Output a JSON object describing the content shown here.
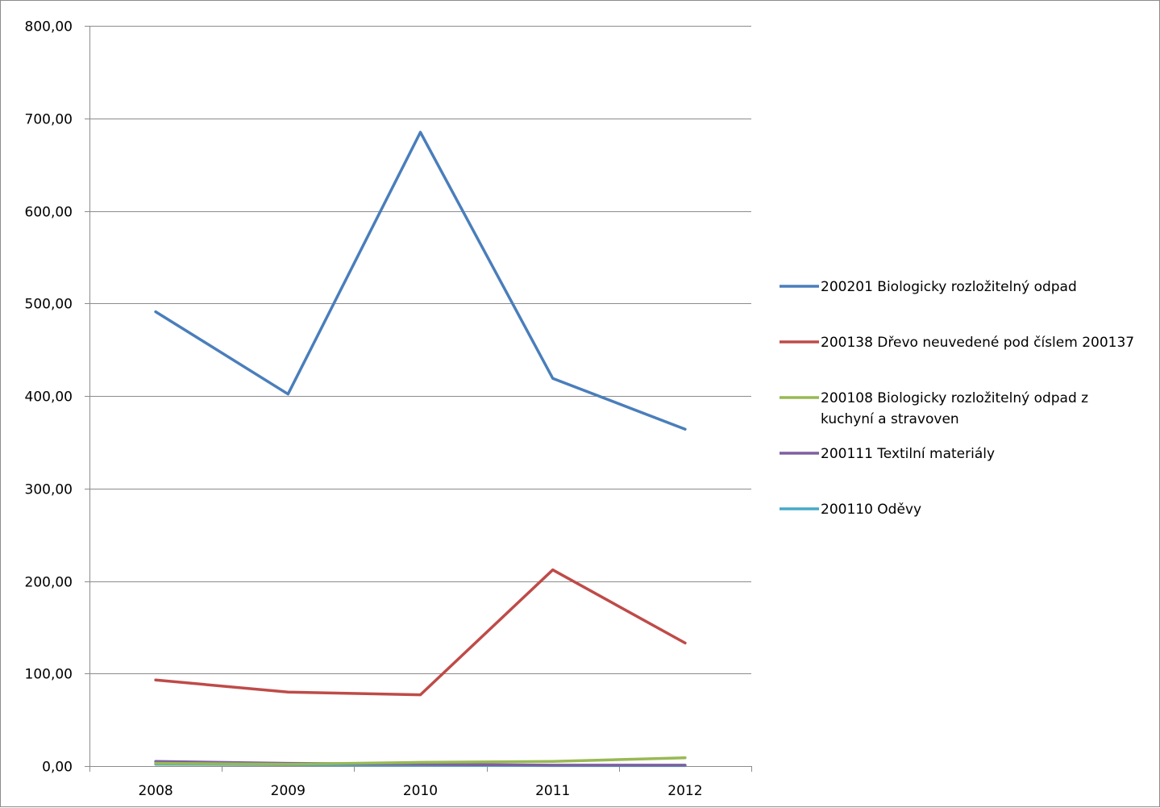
{
  "chart_data": {
    "type": "line",
    "title": "",
    "xlabel": "",
    "ylabel": "",
    "categories": [
      "2008",
      "2009",
      "2010",
      "2011",
      "2012"
    ],
    "ylim": [
      0,
      800
    ],
    "y_ticks": [
      0,
      100,
      200,
      300,
      400,
      500,
      600,
      700,
      800
    ],
    "y_tick_labels": [
      "0,00",
      "100,00",
      "200,00",
      "300,00",
      "400,00",
      "500,00",
      "600,00",
      "700,00",
      "800,00"
    ],
    "grid": "horizontal",
    "legend_position": "right",
    "series": [
      {
        "name": "200201 Biologicky rozložitelný odpad",
        "legend_lines": [
          "200201 Biologicky rozložitelný odpad"
        ],
        "color": "#4a7ebb",
        "values": [
          491,
          402,
          685,
          419,
          364
        ]
      },
      {
        "name": "200138 Dřevo neuvedené pod číslem 200137",
        "legend_lines": [
          "200138 Dřevo neuvedené pod číslem 200137"
        ],
        "color": "#be4b48",
        "values": [
          93,
          80,
          77,
          212,
          133
        ]
      },
      {
        "name": "200108 Biologicky rozložitelný odpad z kuchyní a stravoven",
        "legend_lines": [
          "200108 Biologicky rozložitelný odpad z",
          "kuchyní a stravoven"
        ],
        "color": "#98b954",
        "values": [
          3,
          2,
          4,
          5,
          9
        ]
      },
      {
        "name": "200111 Textilní materiály",
        "legend_lines": [
          "200111 Textilní materiály"
        ],
        "color": "#7d60a0",
        "values": [
          5,
          3,
          2,
          1,
          1
        ]
      },
      {
        "name": "200110 Oděvy",
        "legend_lines": [
          "200110 Oděvy"
        ],
        "color": "#46aac5",
        "values": [
          2,
          1.5,
          1,
          0.5,
          0.5
        ]
      }
    ]
  }
}
